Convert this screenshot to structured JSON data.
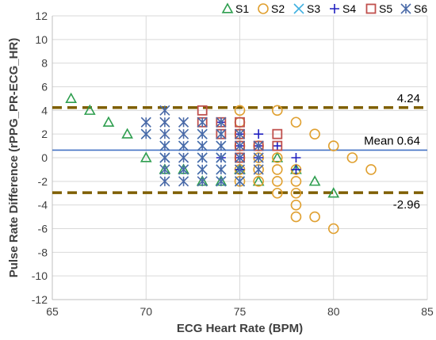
{
  "chart_data": {
    "type": "scatter",
    "xlabel": "ECG Heart Rate (BPM)",
    "ylabel": "Pulse Rate Difference (rPPG_PR-ECG_HR)",
    "xlim": [
      65,
      85
    ],
    "ylim": [
      -12,
      12
    ],
    "x_ticks": [
      65,
      70,
      75,
      80,
      85
    ],
    "y_ticks": [
      -12,
      -10,
      -8,
      -6,
      -4,
      -2,
      0,
      2,
      4,
      6,
      8,
      10,
      12
    ],
    "grid": true,
    "legend_position": "top",
    "reference_lines": [
      {
        "label": "4.24",
        "y": 4.24,
        "style": "dashed",
        "color": "#7f5f00"
      },
      {
        "label": "Mean 0.64",
        "y": 0.64,
        "style": "solid",
        "color": "#4472c4"
      },
      {
        "label": "-2.96",
        "y": -2.96,
        "style": "dashed",
        "color": "#7f5f00"
      }
    ],
    "series": [
      {
        "name": "S1",
        "marker": "triangle",
        "color": "#2e9e4f",
        "points": [
          [
            66,
            5
          ],
          [
            67,
            4
          ],
          [
            68,
            3
          ],
          [
            69,
            2
          ],
          [
            70,
            0
          ],
          [
            71,
            -1
          ],
          [
            72,
            -1
          ],
          [
            73,
            -2
          ],
          [
            74,
            -2
          ],
          [
            75,
            -1
          ],
          [
            76,
            -2
          ],
          [
            77,
            0
          ],
          [
            78,
            -1
          ],
          [
            79,
            -2
          ],
          [
            80,
            -3
          ]
        ]
      },
      {
        "name": "S2",
        "marker": "circle",
        "color": "#e0a030",
        "points": [
          [
            75,
            4
          ],
          [
            75,
            3
          ],
          [
            75,
            2
          ],
          [
            75,
            1
          ],
          [
            75,
            0
          ],
          [
            75,
            -1
          ],
          [
            75,
            -2
          ],
          [
            76,
            1
          ],
          [
            76,
            0
          ],
          [
            76,
            -1
          ],
          [
            76,
            -2
          ],
          [
            77,
            4
          ],
          [
            77,
            0
          ],
          [
            77,
            -1
          ],
          [
            77,
            -2
          ],
          [
            77,
            -3
          ],
          [
            78,
            3
          ],
          [
            78,
            -1
          ],
          [
            78,
            -2
          ],
          [
            78,
            -3
          ],
          [
            78,
            -4
          ],
          [
            78,
            -5
          ],
          [
            79,
            2
          ],
          [
            79,
            -5
          ],
          [
            80,
            1
          ],
          [
            80,
            -6
          ],
          [
            81,
            0
          ],
          [
            82,
            -1
          ]
        ]
      },
      {
        "name": "S3",
        "marker": "x",
        "color": "#3fb0e0",
        "points": [
          [
            70,
            2
          ],
          [
            71,
            1
          ],
          [
            71,
            0
          ],
          [
            72,
            1
          ],
          [
            72,
            -1
          ],
          [
            73,
            2
          ],
          [
            73,
            1
          ],
          [
            73,
            0
          ],
          [
            73,
            -1
          ],
          [
            74,
            2
          ],
          [
            74,
            1
          ],
          [
            74,
            0
          ],
          [
            74,
            -1
          ],
          [
            74,
            -2
          ],
          [
            75,
            -2
          ]
        ]
      },
      {
        "name": "S4",
        "marker": "plus",
        "color": "#2020c0",
        "points": [
          [
            74,
            3
          ],
          [
            74,
            0
          ],
          [
            75,
            2
          ],
          [
            75,
            1
          ],
          [
            75,
            0
          ],
          [
            75,
            -1
          ],
          [
            76,
            2
          ],
          [
            76,
            1
          ],
          [
            76,
            0
          ],
          [
            77,
            1
          ],
          [
            78,
            0
          ],
          [
            78,
            -1
          ]
        ]
      },
      {
        "name": "S5",
        "marker": "square",
        "color": "#c0504d",
        "points": [
          [
            73,
            4
          ],
          [
            73,
            3
          ],
          [
            74,
            3
          ],
          [
            74,
            2
          ],
          [
            75,
            3
          ],
          [
            75,
            2
          ],
          [
            75,
            1
          ],
          [
            75,
            0
          ],
          [
            76,
            1
          ],
          [
            77,
            2
          ],
          [
            77,
            1
          ]
        ]
      },
      {
        "name": "S6",
        "marker": "star",
        "color": "#4a6aa8",
        "points": [
          [
            70,
            3
          ],
          [
            70,
            2
          ],
          [
            71,
            4
          ],
          [
            71,
            3
          ],
          [
            71,
            2
          ],
          [
            71,
            1
          ],
          [
            71,
            0
          ],
          [
            71,
            -1
          ],
          [
            71,
            -2
          ],
          [
            72,
            3
          ],
          [
            72,
            2
          ],
          [
            72,
            1
          ],
          [
            72,
            0
          ],
          [
            72,
            -1
          ],
          [
            72,
            -2
          ],
          [
            73,
            3
          ],
          [
            73,
            2
          ],
          [
            73,
            1
          ],
          [
            73,
            0
          ],
          [
            73,
            -1
          ],
          [
            73,
            -2
          ],
          [
            74,
            3
          ],
          [
            74,
            2
          ],
          [
            74,
            1
          ],
          [
            74,
            0
          ],
          [
            74,
            -1
          ],
          [
            74,
            -2
          ],
          [
            75,
            2
          ],
          [
            75,
            1
          ],
          [
            75,
            0
          ],
          [
            75,
            -1
          ],
          [
            75,
            -2
          ],
          [
            76,
            1
          ],
          [
            76,
            0
          ],
          [
            76,
            -1
          ]
        ]
      }
    ]
  }
}
